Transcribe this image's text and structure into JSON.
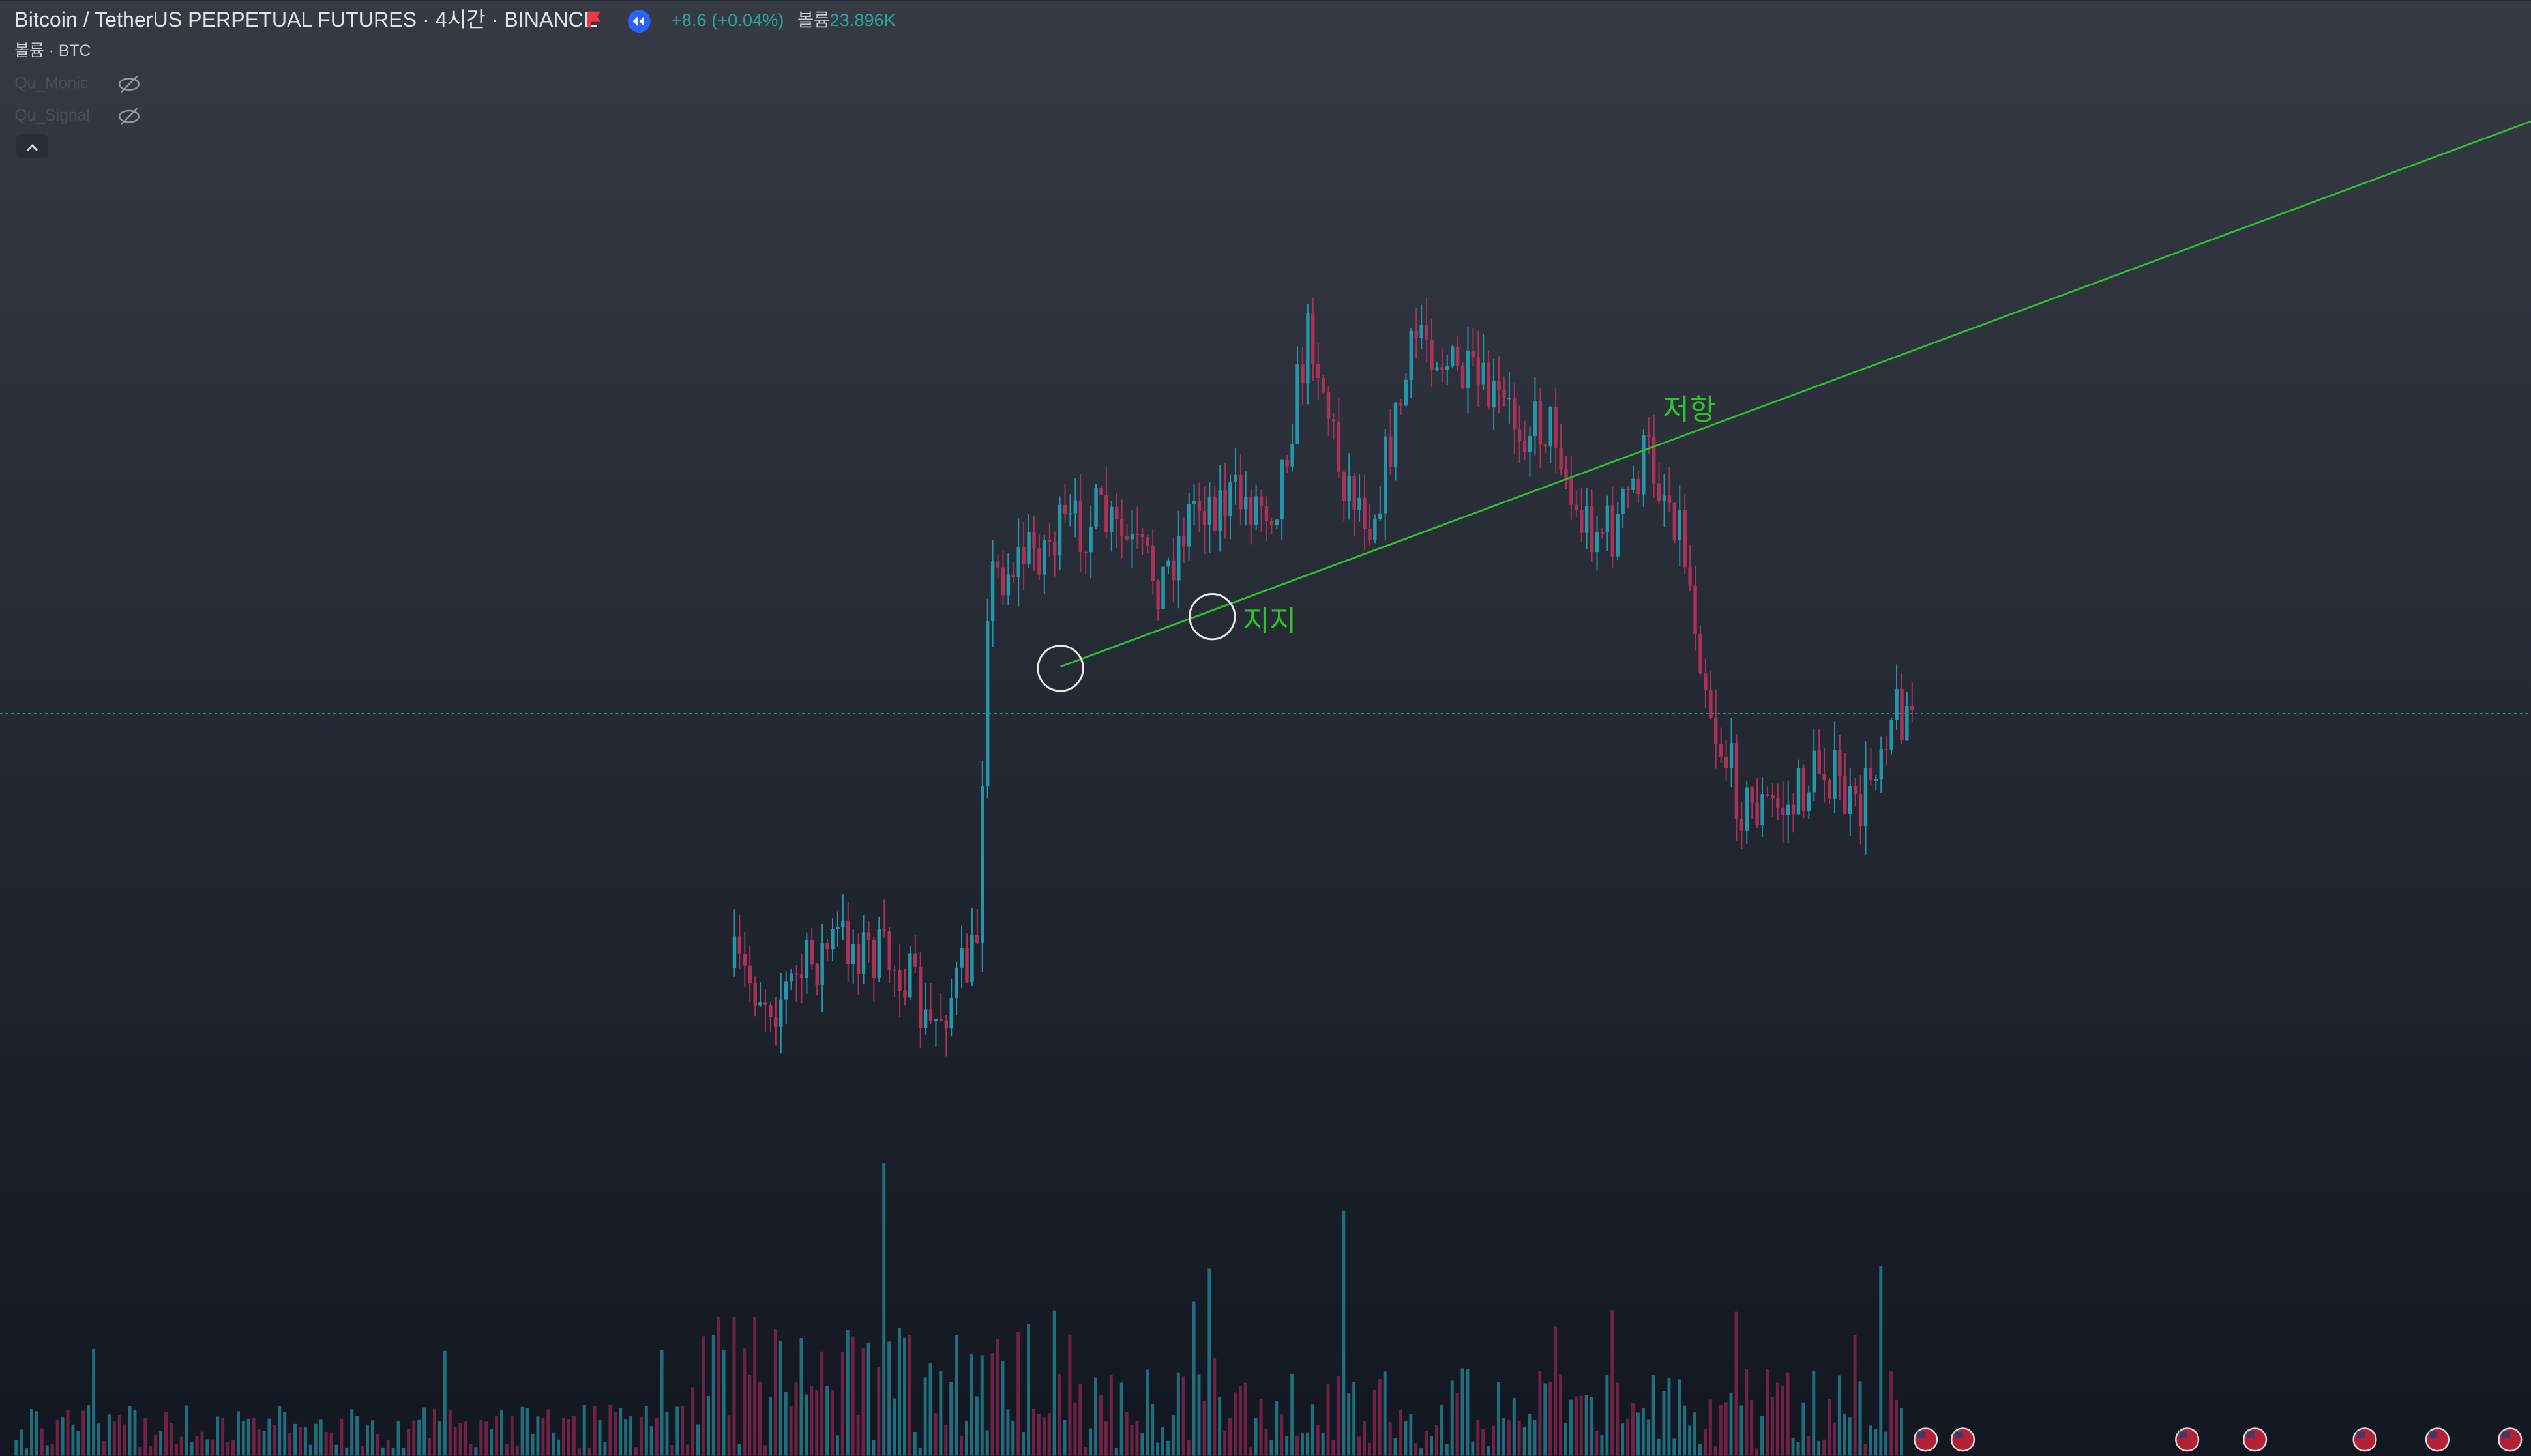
{
  "header": {
    "title": "Bitcoin / TetherUS PERPETUAL FUTURES · 4시간 · BINANCE",
    "change": "+8.6 (+0.04%)",
    "volume_label": "볼륨",
    "volume_value": "23.896K"
  },
  "indicators": [
    "볼륨 · BTC",
    "Qu_Monic",
    "Qu_Signal"
  ],
  "annotations": {
    "support": "지지",
    "resistance": "저항"
  }
}
